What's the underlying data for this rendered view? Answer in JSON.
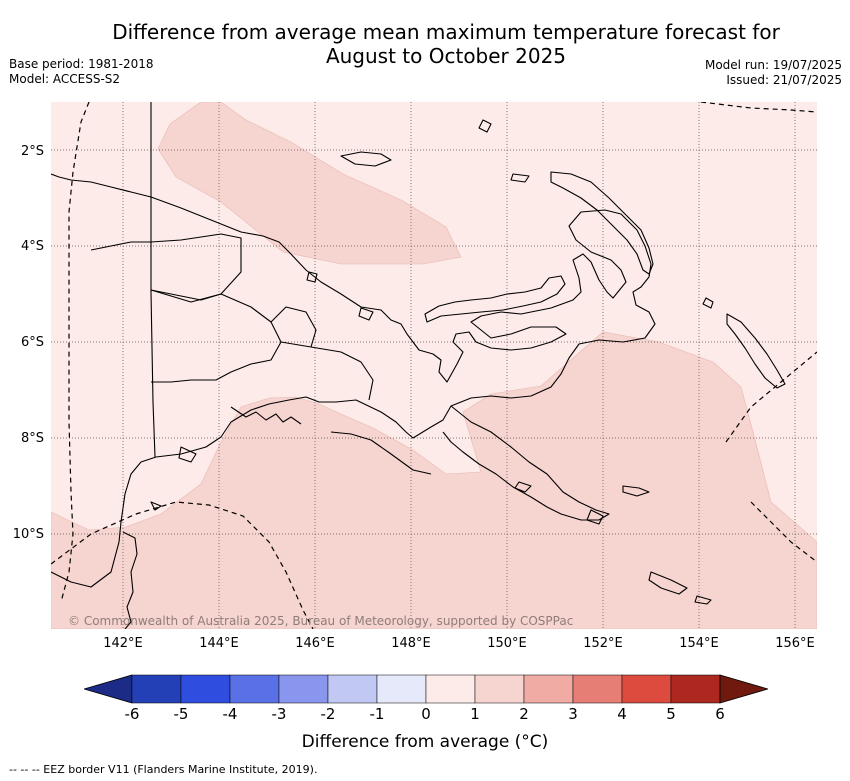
{
  "header": {
    "title_line1": "Difference from average mean maximum temperature forecast for",
    "title_line2": "August to October 2025",
    "base_period": "Base period: 1981-2018",
    "model": "Model: ACCESS-S2",
    "model_run": "Model run: 19/07/2025",
    "issued": "Issued: 21/07/2025"
  },
  "map": {
    "region": "Papua New Guinea",
    "lat_labels": [
      "2°S",
      "4°S",
      "6°S",
      "8°S",
      "10°S"
    ],
    "lon_labels": [
      "142°E",
      "144°E",
      "146°E",
      "148°E",
      "150°E",
      "152°E",
      "154°E",
      "156°E"
    ],
    "copyright": "© Commonwealth of Australia 2025, Bureau of Meteorology, supported by COSPPac",
    "fill_colors": {
      "0_to_1": "#fcebe9",
      "1_to_2": "#f6d4d0"
    }
  },
  "colorbar": {
    "label": "Difference from average (°C)",
    "ticks": [
      "-6",
      "-5",
      "-4",
      "-3",
      "-2",
      "-1",
      "0",
      "1",
      "2",
      "3",
      "4",
      "5",
      "6"
    ],
    "colors": [
      "#1c2b86",
      "#2440b7",
      "#2f4ee0",
      "#5970e6",
      "#8896ed",
      "#c1c8f4",
      "#e6e9f9",
      "#fcebe9",
      "#f6d4d0",
      "#f0aba4",
      "#e67e75",
      "#dc4b3e",
      "#ad2820",
      "#70190f"
    ]
  },
  "legend": {
    "text": "--  --  -- EEZ border V11 (Flanders Marine Institute, 2019)."
  }
}
